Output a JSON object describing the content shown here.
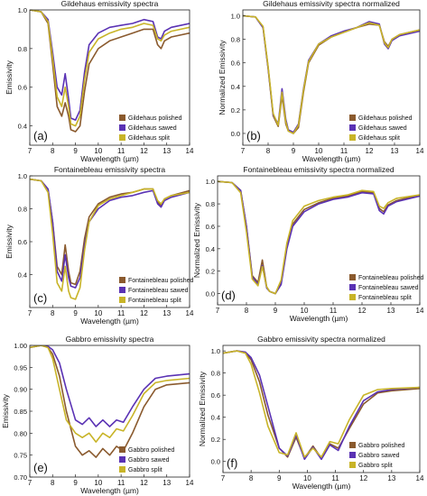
{
  "figure": {
    "colors": {
      "polished": "#8a5a2e",
      "sawed": "#5a32b4",
      "split": "#c8b428",
      "axis": "#222222"
    }
  },
  "chart_data": [
    {
      "type": "line",
      "panel_label": "(a)",
      "title": "Gildehaus emissivity spectra",
      "xlabel": "Wavelength (µm)",
      "ylabel": "Emissivity",
      "xlim": [
        7,
        14
      ],
      "ylim": [
        0.3,
        1.0
      ],
      "xticks": [
        "7",
        "8",
        "9",
        "10",
        "11",
        "12",
        "13",
        "14"
      ],
      "yticks": [
        "0.4",
        "0.6",
        "0.8",
        "1.0"
      ],
      "ytick_values": [
        0.4,
        0.6,
        0.8,
        1.0
      ],
      "legend_position": "bottom-right",
      "x": [
        7,
        7.5,
        7.8,
        8.0,
        8.2,
        8.4,
        8.55,
        8.7,
        8.8,
        9.0,
        9.2,
        9.4,
        9.6,
        10.0,
        10.5,
        11,
        11.5,
        12,
        12.4,
        12.6,
        12.75,
        12.9,
        13.2,
        14
      ],
      "series": [
        {
          "name": "Gildehaus polished",
          "color": "#8a5a2e",
          "values": [
            1.0,
            0.99,
            0.93,
            0.72,
            0.5,
            0.45,
            0.52,
            0.45,
            0.38,
            0.37,
            0.4,
            0.58,
            0.72,
            0.8,
            0.84,
            0.86,
            0.88,
            0.9,
            0.9,
            0.82,
            0.8,
            0.84,
            0.86,
            0.88
          ]
        },
        {
          "name": "Gildehaus sawed",
          "color": "#5a32b4",
          "values": [
            1.0,
            0.99,
            0.95,
            0.78,
            0.6,
            0.56,
            0.67,
            0.54,
            0.44,
            0.43,
            0.48,
            0.68,
            0.82,
            0.88,
            0.91,
            0.92,
            0.93,
            0.95,
            0.94,
            0.86,
            0.85,
            0.89,
            0.91,
            0.93
          ]
        },
        {
          "name": "Gildehaus split",
          "color": "#c8b428",
          "values": [
            1.0,
            0.99,
            0.94,
            0.75,
            0.55,
            0.5,
            0.6,
            0.5,
            0.41,
            0.4,
            0.45,
            0.64,
            0.78,
            0.85,
            0.88,
            0.9,
            0.91,
            0.93,
            0.92,
            0.85,
            0.84,
            0.87,
            0.89,
            0.91
          ]
        }
      ]
    },
    {
      "type": "line",
      "panel_label": "(b)",
      "title": "Gildehaus emissivity spectra normalized",
      "xlabel": "Wavelength (µm)",
      "ylabel": "Normalized Emissivity",
      "xlim": [
        7,
        14
      ],
      "ylim": [
        -0.1,
        1.05
      ],
      "xticks": [
        "7",
        "8",
        "9",
        "10",
        "11",
        "12",
        "13",
        "14"
      ],
      "yticks": [
        "0.0",
        "0.2",
        "0.4",
        "0.6",
        "0.8",
        "1.0"
      ],
      "ytick_values": [
        0,
        0.2,
        0.4,
        0.6,
        0.8,
        1.0
      ],
      "legend_position": "bottom-right",
      "x": [
        7,
        7.5,
        7.8,
        8.0,
        8.2,
        8.4,
        8.55,
        8.7,
        8.8,
        9.0,
        9.2,
        9.4,
        9.6,
        10.0,
        10.5,
        11,
        11.5,
        12,
        12.4,
        12.6,
        12.75,
        12.9,
        13.2,
        14
      ],
      "series": [
        {
          "name": "Gildehaus polished",
          "color": "#8a5a2e",
          "values": [
            1.0,
            0.99,
            0.9,
            0.55,
            0.15,
            0.06,
            0.32,
            0.08,
            0.02,
            0.0,
            0.05,
            0.35,
            0.6,
            0.75,
            0.82,
            0.86,
            0.9,
            0.93,
            0.92,
            0.78,
            0.74,
            0.8,
            0.84,
            0.88
          ]
        },
        {
          "name": "Gildehaus sawed",
          "color": "#5a32b4",
          "values": [
            1.0,
            0.99,
            0.9,
            0.56,
            0.16,
            0.08,
            0.38,
            0.12,
            0.03,
            0.01,
            0.08,
            0.38,
            0.62,
            0.76,
            0.83,
            0.87,
            0.9,
            0.95,
            0.93,
            0.76,
            0.72,
            0.79,
            0.83,
            0.87
          ]
        },
        {
          "name": "Gildehaus split",
          "color": "#c8b428",
          "values": [
            1.0,
            0.99,
            0.91,
            0.57,
            0.17,
            0.07,
            0.35,
            0.1,
            0.02,
            0.0,
            0.07,
            0.37,
            0.61,
            0.76,
            0.82,
            0.86,
            0.9,
            0.94,
            0.92,
            0.77,
            0.73,
            0.8,
            0.84,
            0.88
          ]
        }
      ]
    },
    {
      "type": "line",
      "panel_label": "(c)",
      "title": "Fontainebleau emissivity spectra",
      "xlabel": "Wavelength (µm)",
      "ylabel": "Emissivity",
      "xlim": [
        7,
        14
      ],
      "ylim": [
        0.2,
        1.0
      ],
      "xticks": [
        "7",
        "8",
        "9",
        "10",
        "11",
        "12",
        "13",
        "14"
      ],
      "yticks": [
        "0.4",
        "0.6",
        "0.8",
        "1.0"
      ],
      "ytick_values": [
        0.4,
        0.6,
        0.8,
        1.0
      ],
      "legend_position": "bottom-right",
      "x": [
        7,
        7.5,
        7.8,
        8.0,
        8.2,
        8.4,
        8.55,
        8.7,
        8.8,
        9.0,
        9.2,
        9.4,
        9.6,
        10.0,
        10.5,
        11,
        11.5,
        12,
        12.4,
        12.6,
        12.75,
        12.9,
        13.2,
        14
      ],
      "series": [
        {
          "name": "Fontainebleau polished",
          "color": "#8a5a2e",
          "values": [
            0.98,
            0.97,
            0.92,
            0.72,
            0.45,
            0.4,
            0.58,
            0.42,
            0.35,
            0.34,
            0.42,
            0.62,
            0.75,
            0.83,
            0.87,
            0.89,
            0.9,
            0.92,
            0.92,
            0.84,
            0.82,
            0.86,
            0.88,
            0.91
          ]
        },
        {
          "name": "Fontainebleau sawed",
          "color": "#5a32b4",
          "values": [
            0.98,
            0.97,
            0.92,
            0.72,
            0.42,
            0.36,
            0.52,
            0.38,
            0.33,
            0.32,
            0.38,
            0.58,
            0.72,
            0.8,
            0.85,
            0.87,
            0.88,
            0.9,
            0.91,
            0.83,
            0.81,
            0.85,
            0.87,
            0.9
          ]
        },
        {
          "name": "Fontainebleau split",
          "color": "#c8b428",
          "values": [
            0.98,
            0.97,
            0.9,
            0.65,
            0.35,
            0.3,
            0.45,
            0.3,
            0.26,
            0.25,
            0.32,
            0.55,
            0.72,
            0.82,
            0.86,
            0.88,
            0.9,
            0.92,
            0.92,
            0.85,
            0.83,
            0.86,
            0.88,
            0.9
          ]
        }
      ]
    },
    {
      "type": "line",
      "panel_label": "(d)",
      "title": "Fontainebleau emissivity spectra normalized",
      "xlabel": "Wavelength (µm)",
      "ylabel": "Normalized Emissivity",
      "xlim": [
        7,
        14
      ],
      "ylim": [
        -0.1,
        1.05
      ],
      "xticks": [
        "7",
        "8",
        "9",
        "10",
        "11",
        "12",
        "13",
        "14"
      ],
      "yticks": [
        "0.0",
        "0.2",
        "0.4",
        "0.6",
        "0.8",
        "1.0"
      ],
      "ytick_values": [
        0,
        0.2,
        0.4,
        0.6,
        0.8,
        1.0
      ],
      "legend_position": "bottom-right",
      "x": [
        7,
        7.5,
        7.8,
        8.0,
        8.2,
        8.4,
        8.55,
        8.7,
        8.8,
        9.0,
        9.2,
        9.4,
        9.6,
        10.0,
        10.5,
        11,
        11.5,
        12,
        12.4,
        12.6,
        12.75,
        12.9,
        13.2,
        14
      ],
      "series": [
        {
          "name": "Fontainebleau polished",
          "color": "#8a5a2e",
          "values": [
            1.0,
            0.99,
            0.92,
            0.6,
            0.16,
            0.1,
            0.3,
            0.06,
            0.02,
            0.0,
            0.1,
            0.42,
            0.62,
            0.75,
            0.81,
            0.85,
            0.87,
            0.91,
            0.9,
            0.76,
            0.73,
            0.79,
            0.83,
            0.88
          ]
        },
        {
          "name": "Fontainebleau sawed",
          "color": "#5a32b4",
          "values": [
            1.0,
            0.99,
            0.92,
            0.6,
            0.15,
            0.08,
            0.25,
            0.05,
            0.02,
            0.0,
            0.08,
            0.4,
            0.6,
            0.73,
            0.8,
            0.84,
            0.86,
            0.9,
            0.89,
            0.74,
            0.71,
            0.78,
            0.82,
            0.87
          ]
        },
        {
          "name": "Fontainebleau split",
          "color": "#c8b428",
          "values": [
            1.0,
            0.99,
            0.9,
            0.55,
            0.13,
            0.07,
            0.24,
            0.06,
            0.02,
            0.0,
            0.12,
            0.45,
            0.65,
            0.78,
            0.83,
            0.86,
            0.88,
            0.92,
            0.91,
            0.78,
            0.76,
            0.81,
            0.85,
            0.88
          ]
        }
      ]
    },
    {
      "type": "line",
      "panel_label": "(e)",
      "title": "Gabbro emissivity spectra",
      "xlabel": "Wavelength (µm)",
      "ylabel": "Emissivity",
      "xlim": [
        7,
        14
      ],
      "ylim": [
        0.7,
        1.0
      ],
      "xticks": [
        "7",
        "8",
        "9",
        "10",
        "11",
        "12",
        "13",
        "14"
      ],
      "yticks": [
        "0.70",
        "0.75",
        "0.80",
        "0.85",
        "0.90",
        "0.95",
        "1.00"
      ],
      "ytick_values": [
        0.7,
        0.75,
        0.8,
        0.85,
        0.9,
        0.95,
        1.0
      ],
      "legend_position": "bottom-right",
      "x": [
        7,
        7.5,
        7.8,
        8.0,
        8.3,
        8.6,
        9.0,
        9.3,
        9.6,
        9.9,
        10.2,
        10.5,
        10.8,
        11.1,
        11.5,
        12,
        12.5,
        13,
        14
      ],
      "series": [
        {
          "name": "Gabbro polished",
          "color": "#8a5a2e",
          "values": [
            0.995,
            1.0,
            0.995,
            0.98,
            0.93,
            0.85,
            0.77,
            0.75,
            0.76,
            0.745,
            0.765,
            0.75,
            0.77,
            0.76,
            0.8,
            0.86,
            0.9,
            0.91,
            0.915
          ]
        },
        {
          "name": "Gabbro sawed",
          "color": "#5a32b4",
          "values": [
            0.995,
            1.0,
            0.998,
            0.99,
            0.96,
            0.9,
            0.83,
            0.82,
            0.835,
            0.815,
            0.83,
            0.815,
            0.83,
            0.825,
            0.86,
            0.9,
            0.925,
            0.93,
            0.935
          ]
        },
        {
          "name": "Gabbro split",
          "color": "#c8b428",
          "values": [
            0.995,
            1.0,
            0.995,
            0.97,
            0.9,
            0.83,
            0.8,
            0.79,
            0.8,
            0.78,
            0.8,
            0.79,
            0.81,
            0.805,
            0.84,
            0.89,
            0.915,
            0.92,
            0.925
          ]
        }
      ]
    },
    {
      "type": "line",
      "panel_label": "(f)",
      "title": "Gabbro emissivity spectra normalized",
      "xlabel": "Wavelength (µm)",
      "ylabel": "Normalized Emissivity",
      "xlim": [
        7,
        14
      ],
      "ylim": [
        -0.1,
        1.05
      ],
      "xticks": [
        "7",
        "8",
        "9",
        "10",
        "11",
        "12",
        "13",
        "14"
      ],
      "yticks": [
        "0.0",
        "0.2",
        "0.4",
        "0.6",
        "0.8",
        "1.0"
      ],
      "ytick_values": [
        0,
        0.2,
        0.4,
        0.6,
        0.8,
        1.0
      ],
      "legend_position": "bottom-right",
      "x": [
        7,
        7.5,
        7.8,
        8.0,
        8.3,
        8.6,
        9.0,
        9.3,
        9.6,
        9.9,
        10.2,
        10.5,
        10.8,
        11.1,
        11.5,
        12,
        12.5,
        13,
        14
      ],
      "series": [
        {
          "name": "Gabbro polished",
          "color": "#8a5a2e",
          "values": [
            0.98,
            1.0,
            0.98,
            0.92,
            0.72,
            0.42,
            0.12,
            0.04,
            0.22,
            0.03,
            0.14,
            0.03,
            0.16,
            0.12,
            0.3,
            0.52,
            0.62,
            0.64,
            0.66
          ]
        },
        {
          "name": "Gabbro sawed",
          "color": "#5a32b4",
          "values": [
            0.98,
            1.0,
            0.99,
            0.94,
            0.78,
            0.5,
            0.12,
            0.05,
            0.24,
            0.02,
            0.13,
            0.02,
            0.15,
            0.1,
            0.32,
            0.55,
            0.63,
            0.65,
            0.67
          ]
        },
        {
          "name": "Gabbro split",
          "color": "#c8b428",
          "values": [
            0.98,
            1.0,
            0.98,
            0.88,
            0.62,
            0.32,
            0.08,
            0.06,
            0.26,
            0.04,
            0.12,
            0.04,
            0.18,
            0.16,
            0.38,
            0.6,
            0.65,
            0.66,
            0.67
          ]
        }
      ]
    }
  ]
}
